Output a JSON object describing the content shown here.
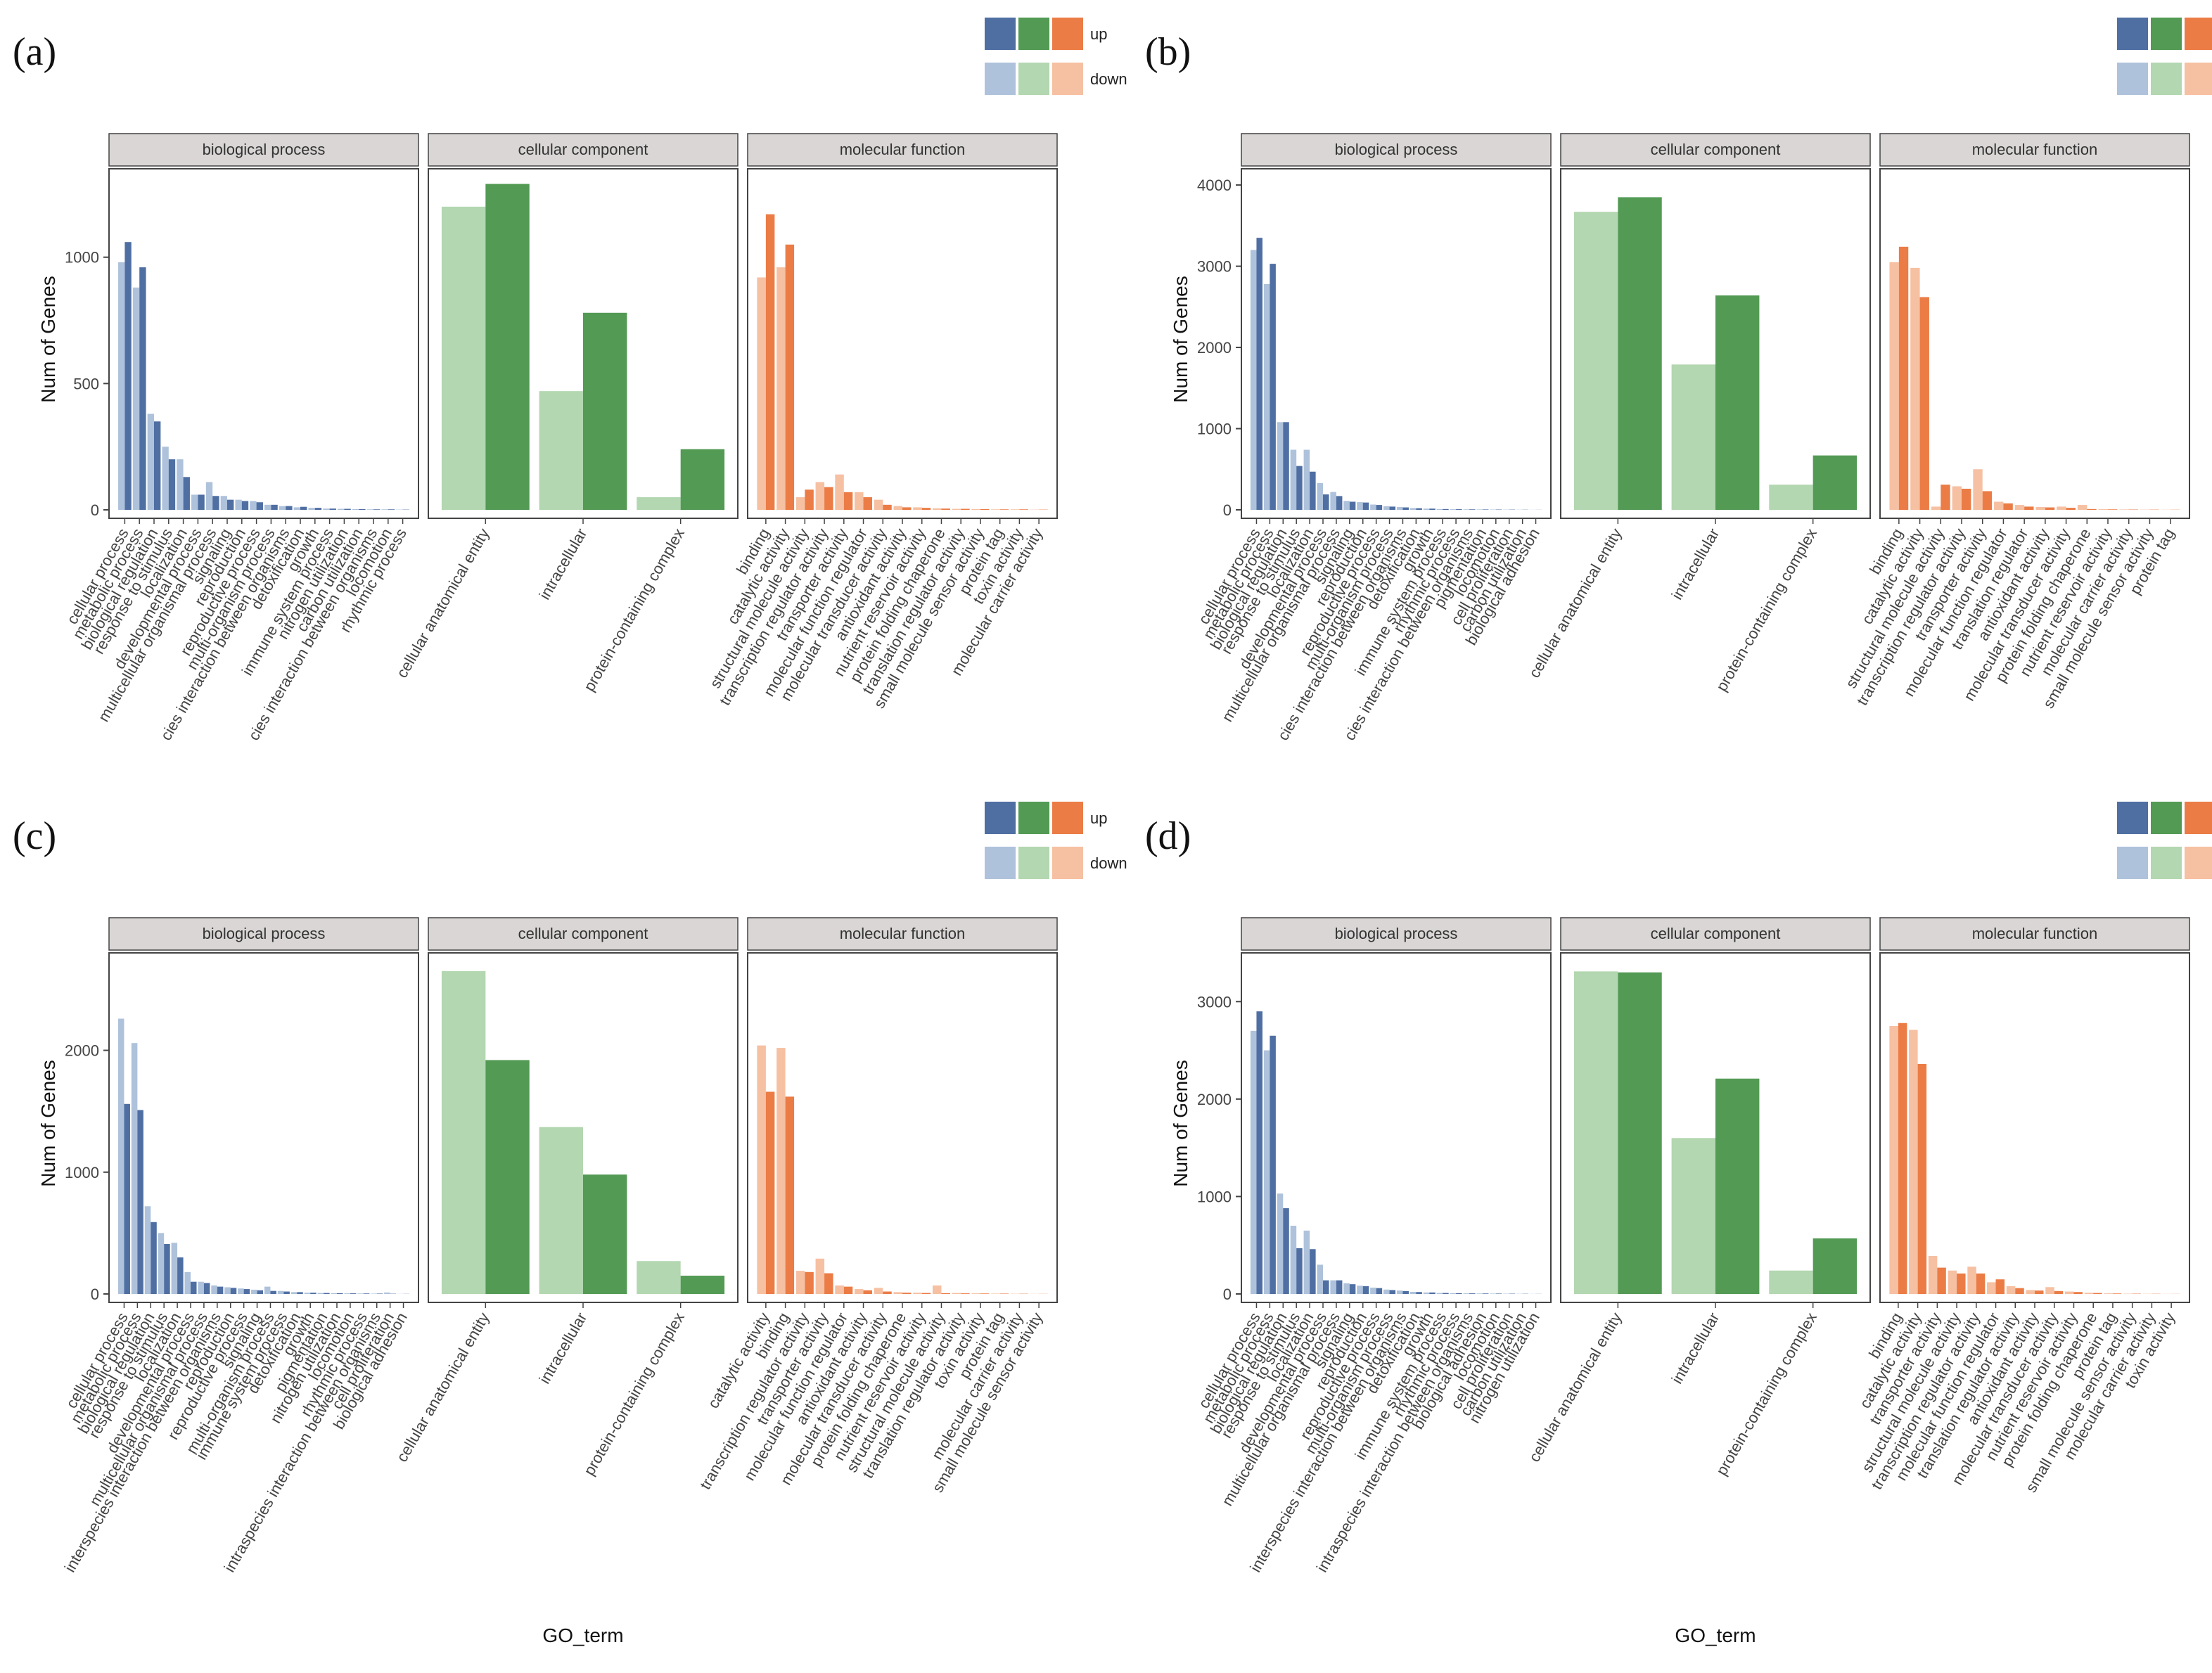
{
  "figure": {
    "x_axis_title": "GO_term",
    "y_axis_title": "Num of Genes",
    "legend": {
      "up_label": "up",
      "down_label": "down"
    },
    "colors": {
      "bp_up": "#4f6fa3",
      "bp_down": "#afc2db",
      "cc_up": "#539a54",
      "cc_down": "#b3d7b0",
      "mf_up": "#eb7c46",
      "mf_down": "#f6c0a2",
      "strip_fill": "#d9d6d5",
      "panel_border": "#444444"
    }
  },
  "chart_data": [
    {
      "type": "bar",
      "panel_label": "(a)",
      "ylabel": "Num of Genes",
      "xlabel": "",
      "yticks": [
        0,
        500,
        1000
      ],
      "ylim": [
        0,
        1350
      ],
      "facets": [
        {
          "title": "biological process",
          "categories": [
            "cellular process",
            "metabolic process",
            "biological regulation",
            "response to stimulus",
            "localization",
            "developmental process",
            "multicellular organismal process",
            "signaling",
            "reproduction",
            "reproductive process",
            "multi-organism process",
            "cies interaction between organisms",
            "detoxification",
            "growth",
            "immune system process",
            "nitrogen utilization",
            "carbon utilization",
            "cies interaction between organisms",
            "locomotion",
            "rhythmic process"
          ],
          "series": [
            {
              "name": "up",
              "values": [
                1060,
                960,
                350,
                200,
                130,
                60,
                55,
                40,
                35,
                30,
                20,
                15,
                12,
                8,
                5,
                4,
                3,
                2,
                2,
                1
              ]
            },
            {
              "name": "down",
              "values": [
                980,
                880,
                380,
                250,
                200,
                60,
                110,
                55,
                40,
                35,
                20,
                15,
                10,
                8,
                5,
                4,
                3,
                2,
                2,
                1
              ]
            }
          ]
        },
        {
          "title": "cellular component",
          "categories": [
            "cellular anatomical entity",
            "intracellular",
            "protein-containing complex"
          ],
          "series": [
            {
              "name": "up",
              "values": [
                1290,
                780,
                240
              ]
            },
            {
              "name": "down",
              "values": [
                1200,
                470,
                50
              ]
            }
          ]
        },
        {
          "title": "molecular function",
          "categories": [
            "binding",
            "catalytic activity",
            "structural molecule activity",
            "transcription regulator activity",
            "transporter activity",
            "molecular function regulator",
            "molecular transducer activity",
            "antioxidant activity",
            "nutrient reservoir activity",
            "protein folding chaperone",
            "translation regulator activity",
            "small molecule sensor activity",
            "protein tag",
            "toxin activity",
            "molecular carrier activity"
          ],
          "series": [
            {
              "name": "up",
              "values": [
                1170,
                1050,
                80,
                90,
                70,
                50,
                20,
                10,
                8,
                5,
                4,
                3,
                2,
                2,
                1
              ]
            },
            {
              "name": "down",
              "values": [
                920,
                960,
                50,
                110,
                140,
                70,
                40,
                15,
                10,
                6,
                4,
                3,
                2,
                2,
                1
              ]
            }
          ]
        }
      ]
    },
    {
      "type": "bar",
      "panel_label": "(b)",
      "ylabel": "Num of Genes",
      "xlabel": "",
      "yticks": [
        0,
        1000,
        2000,
        3000,
        4000
      ],
      "ylim": [
        0,
        4200
      ],
      "facets": [
        {
          "title": "biological process",
          "categories": [
            "cellular process",
            "metabolic process",
            "biological regulation",
            "response to stimulus",
            "localization",
            "developmental process",
            "multicellular organismal process",
            "signaling",
            "reproduction",
            "reproductive process",
            "multi-organism process",
            "cies interaction between organisms",
            "detoxification",
            "growth",
            "immune system process",
            "rhythmic process",
            "cies interaction between organisms",
            "pigmentation",
            "locomotion",
            "cell proliferation",
            "carbon utilization",
            "biological adhesion"
          ],
          "series": [
            {
              "name": "up",
              "values": [
                3350,
                3030,
                1080,
                540,
                470,
                190,
                170,
                100,
                90,
                60,
                40,
                30,
                20,
                15,
                10,
                8,
                6,
                5,
                4,
                3,
                2,
                1
              ]
            },
            {
              "name": "down",
              "values": [
                3200,
                2780,
                1080,
                740,
                740,
                330,
                220,
                110,
                95,
                65,
                45,
                35,
                22,
                15,
                10,
                8,
                6,
                5,
                4,
                3,
                2,
                1
              ]
            }
          ]
        },
        {
          "title": "cellular component",
          "categories": [
            "cellular anatomical entity",
            "intracellular",
            "protein-containing complex"
          ],
          "series": [
            {
              "name": "up",
              "values": [
                3850,
                2640,
                670
              ]
            },
            {
              "name": "down",
              "values": [
                3670,
                1790,
                310
              ]
            }
          ]
        },
        {
          "title": "molecular function",
          "categories": [
            "binding",
            "catalytic activity",
            "structural molecule activity",
            "transcription regulator activity",
            "transporter activity",
            "molecular function regulator",
            "translation regulator",
            "antioxidant activity",
            "molecular transducer activity",
            "protein folding chaperone",
            "nutrient reservoir activity",
            "molecular carrier activity",
            "small molecule sensor activity",
            "protein tag"
          ],
          "series": [
            {
              "name": "up",
              "values": [
                3240,
                2620,
                310,
                260,
                230,
                80,
                40,
                30,
                25,
                10,
                6,
                4,
                3,
                2
              ]
            },
            {
              "name": "down",
              "values": [
                3050,
                2980,
                40,
                290,
                500,
                100,
                60,
                35,
                40,
                60,
                8,
                5,
                3,
                2
              ]
            }
          ]
        }
      ]
    },
    {
      "type": "bar",
      "panel_label": "(c)",
      "ylabel": "Num of Genes",
      "xlabel": "GO_term",
      "yticks": [
        0,
        1000,
        2000
      ],
      "ylim": [
        0,
        2800
      ],
      "facets": [
        {
          "title": "biological process",
          "categories": [
            "cellular process",
            "metabolic process",
            "biological regulation",
            "response to stimulus",
            "localization",
            "developmental process",
            "multicellular organismal process",
            "interspecies interaction between organisms",
            "reproduction",
            "reproductive process",
            "signaling",
            "multi-organism process",
            "immune system process",
            "detoxification",
            "growth",
            "pigmentation",
            "nitrogen utilization",
            "locomotion",
            "rhythmic process",
            "intraspecies interaction between organisms",
            "cell proliferation",
            "biological adhesion"
          ],
          "series": [
            {
              "name": "up",
              "values": [
                1560,
                1510,
                590,
                410,
                300,
                100,
                90,
                60,
                50,
                40,
                30,
                25,
                20,
                15,
                10,
                8,
                6,
                5,
                4,
                3,
                2,
                1
              ]
            },
            {
              "name": "down",
              "values": [
                2260,
                2060,
                720,
                500,
                420,
                180,
                100,
                70,
                55,
                45,
                35,
                60,
                25,
                15,
                10,
                8,
                6,
                5,
                4,
                3,
                12,
                1
              ]
            }
          ]
        },
        {
          "title": "cellular component",
          "categories": [
            "cellular anatomical entity",
            "intracellular",
            "protein-containing complex"
          ],
          "series": [
            {
              "name": "up",
              "values": [
                1920,
                980,
                150
              ]
            },
            {
              "name": "down",
              "values": [
                2650,
                1370,
                270
              ]
            }
          ]
        },
        {
          "title": "molecular function",
          "categories": [
            "catalytic activity",
            "binding",
            "transcription regulator activity",
            "transporter activity",
            "molecular function regulator",
            "antioxidant activity",
            "molecular transducer activity",
            "protein folding chaperone",
            "nutrient reservoir activity",
            "structural molecule activity",
            "translation regulator activity",
            "toxin activity",
            "protein tag",
            "molecular carrier activity",
            "small molecule sensor activity"
          ],
          "series": [
            {
              "name": "up",
              "values": [
                1660,
                1620,
                180,
                170,
                60,
                30,
                20,
                10,
                8,
                6,
                5,
                4,
                3,
                2,
                1
              ]
            },
            {
              "name": "down",
              "values": [
                2040,
                2020,
                190,
                290,
                70,
                40,
                50,
                15,
                10,
                70,
                8,
                5,
                3,
                2,
                1
              ]
            }
          ]
        }
      ]
    },
    {
      "type": "bar",
      "panel_label": "(d)",
      "ylabel": "Num of Genes",
      "xlabel": "GO_term",
      "yticks": [
        0,
        1000,
        2000,
        3000
      ],
      "ylim": [
        0,
        3500
      ],
      "facets": [
        {
          "title": "biological process",
          "categories": [
            "cellular process",
            "metabolic process",
            "biological regulation",
            "response to stimulus",
            "localization",
            "developmental process",
            "multicellular organismal process",
            "signaling",
            "reproduction",
            "reproductive process",
            "multi-organism process",
            "interspecies interaction between organisms",
            "detoxification",
            "growth",
            "immune system process",
            "rhythmic process",
            "intraspecies interaction between organisms",
            "biological adhesion",
            "locomotion",
            "cell proliferation",
            "carbon utilization",
            "nitrogen utilization"
          ],
          "series": [
            {
              "name": "up",
              "values": [
                2900,
                2650,
                880,
                470,
                460,
                140,
                140,
                100,
                80,
                60,
                40,
                30,
                20,
                15,
                10,
                8,
                6,
                5,
                4,
                3,
                2,
                1
              ]
            },
            {
              "name": "down",
              "values": [
                2700,
                2500,
                1030,
                700,
                650,
                300,
                140,
                110,
                85,
                65,
                45,
                35,
                22,
                15,
                10,
                8,
                6,
                5,
                4,
                3,
                2,
                1
              ]
            }
          ]
        },
        {
          "title": "cellular component",
          "categories": [
            "cellular anatomical entity",
            "intracellular",
            "protein-containing complex"
          ],
          "series": [
            {
              "name": "up",
              "values": [
                3300,
                2210,
                570
              ]
            },
            {
              "name": "down",
              "values": [
                3310,
                1600,
                240
              ]
            }
          ]
        },
        {
          "title": "molecular function",
          "categories": [
            "binding",
            "catalytic activity",
            "transporter activity",
            "structural molecule activity",
            "transcription regulator activity",
            "molecular function regulator",
            "translation regulator activity",
            "antioxidant activity",
            "molecular transducer activity",
            "nutrient reservoir activity",
            "protein folding chaperone",
            "protein tag",
            "small molecule sensor activity",
            "molecular carrier activity",
            "toxin activity"
          ],
          "series": [
            {
              "name": "up",
              "values": [
                2780,
                2360,
                270,
                210,
                210,
                150,
                60,
                35,
                30,
                20,
                10,
                5,
                3,
                2,
                1
              ]
            },
            {
              "name": "down",
              "values": [
                2750,
                2710,
                390,
                240,
                280,
                120,
                80,
                40,
                70,
                25,
                12,
                6,
                3,
                2,
                1
              ]
            }
          ]
        }
      ]
    }
  ]
}
